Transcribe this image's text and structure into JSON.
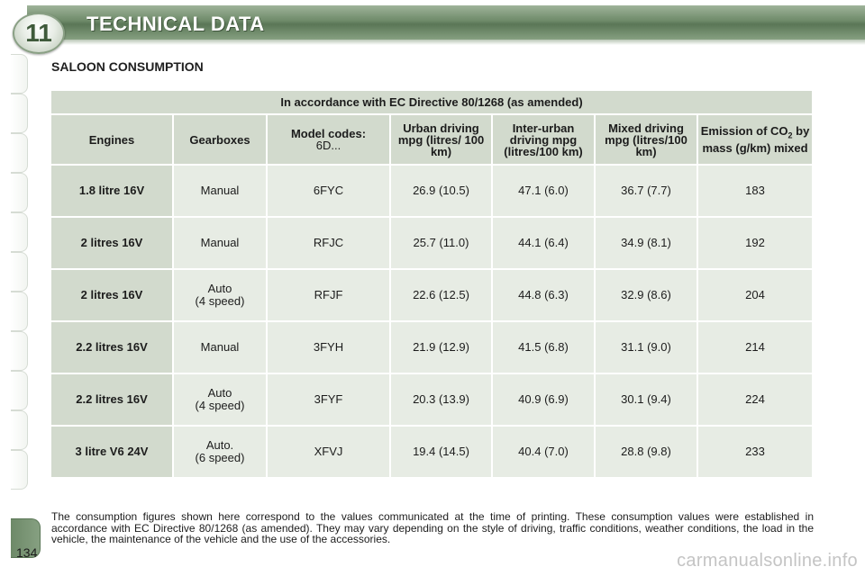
{
  "header": {
    "chapter_number": "11",
    "title": "TECHNICAL DATA"
  },
  "section_title": "SALOON CONSUMPTION",
  "table": {
    "caption": "In accordance with EC Directive 80/1268 (as amended)",
    "headers": {
      "engines": "Engines",
      "gearboxes": "Gearboxes",
      "model_codes": "Model codes:",
      "model_codes_sub": "6D...",
      "urban": "Urban driving mpg (litres/ 100 km)",
      "inter_urban": "Inter-urban driving mpg (litres/100 km)",
      "mixed": "Mixed driving mpg (litres/100 km)",
      "emission_a": "Emission of CO",
      "emission_sub": "2",
      "emission_b": " by mass (g/km) mixed"
    },
    "rows": [
      {
        "engine": "1.8 litre 16V",
        "gearbox_1": "Manual",
        "gearbox_2": "",
        "code": "6FYC",
        "urban": "26.9 (10.5)",
        "inter_urban": "47.1 (6.0)",
        "mixed": "36.7 (7.7)",
        "co2": "183"
      },
      {
        "engine": "2 litres 16V",
        "gearbox_1": "Manual",
        "gearbox_2": "",
        "code": "RFJC",
        "urban": "25.7 (11.0)",
        "inter_urban": "44.1 (6.4)",
        "mixed": "34.9 (8.1)",
        "co2": "192"
      },
      {
        "engine": "2 litres 16V",
        "gearbox_1": "Auto",
        "gearbox_2": "(4 speed)",
        "code": "RFJF",
        "urban": "22.6 (12.5)",
        "inter_urban": "44.8 (6.3)",
        "mixed": "32.9 (8.6)",
        "co2": "204"
      },
      {
        "engine": "2.2 litres 16V",
        "gearbox_1": "Manual",
        "gearbox_2": "",
        "code": "3FYH",
        "urban": "21.9 (12.9)",
        "inter_urban": "41.5 (6.8)",
        "mixed": "31.1 (9.0)",
        "co2": "214"
      },
      {
        "engine": "2.2 litres 16V",
        "gearbox_1": "Auto",
        "gearbox_2": "(4 speed)",
        "code": "3FYF",
        "urban": "20.3 (13.9)",
        "inter_urban": "40.9 (6.9)",
        "mixed": "30.1 (9.4)",
        "co2": "224"
      },
      {
        "engine": "3 litre V6 24V",
        "gearbox_1": "Auto.",
        "gearbox_2": "(6 speed)",
        "code": "XFVJ",
        "urban": "19.4 (14.5)",
        "inter_urban": "40.4 (7.0)",
        "mixed": "28.8 (9.8)",
        "co2": "233"
      }
    ]
  },
  "footnote": "The consumption figures shown here correspond to the values communicated at the time of printing. These consumption values were established in accordance with EC Directive 80/1268 (as amended). They may vary depending on the style of driving, traffic conditions, weather conditions, the load in the vehicle, the maintenance of the vehicle and the use of the accessories.",
  "page_number": "134",
  "watermark": "carmanualsonline.info",
  "colors": {
    "header_green": "#6e8a69",
    "cell_header": "#d2dacd",
    "cell_body": "#e7ece4"
  }
}
